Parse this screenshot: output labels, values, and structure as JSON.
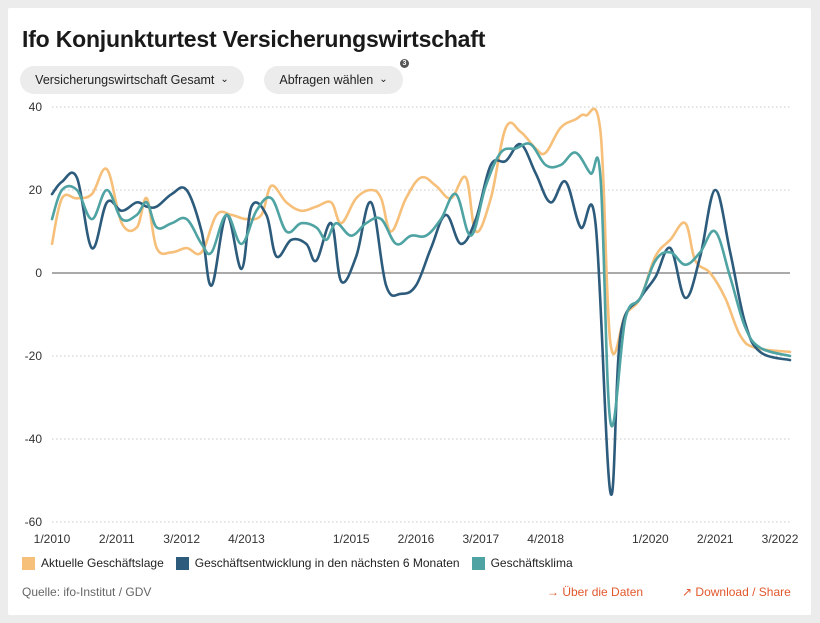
{
  "title": "Ifo Konjunkturtest Versicherungswirtschaft",
  "controls": {
    "sector_select": "Versicherungswirtschaft Gesamt",
    "query_select": "Abfragen wählen",
    "query_badge": "3"
  },
  "footer": {
    "source": "Quelle: ifo-Institut / GDV",
    "about_link": "Über die Daten",
    "download_link": "Download / Share"
  },
  "icons": {
    "about": "arrow-right-icon",
    "download": "arrow-up-right-icon",
    "dropdown": "chevron-down-icon"
  },
  "colors": {
    "accent": "#e2582d"
  },
  "chart_data": {
    "type": "line",
    "x_type": "month",
    "x_start": "1/2010",
    "x_end": "5/2022",
    "ylim": [
      -60,
      40
    ],
    "yticks": [
      40,
      20,
      0,
      -20,
      -40,
      -60
    ],
    "xticks": [
      "1/2010",
      "2/2011",
      "3/2012",
      "4/2013",
      "1/2015",
      "2/2016",
      "3/2017",
      "4/2018",
      "1/2020",
      "2/2021",
      "3/2022"
    ],
    "grid": true,
    "legend_position": "bottom",
    "series": [
      {
        "name": "Aktuelle Geschäftslage",
        "color": "#f6bf7a",
        "points": [
          [
            "1/2010",
            7
          ],
          [
            "3/2010",
            18
          ],
          [
            "6/2010",
            18
          ],
          [
            "9/2010",
            19
          ],
          [
            "12/2010",
            25
          ],
          [
            "3/2011",
            12
          ],
          [
            "6/2011",
            11
          ],
          [
            "8/2011",
            18
          ],
          [
            "10/2011",
            6
          ],
          [
            "1/2012",
            5
          ],
          [
            "4/2012",
            6
          ],
          [
            "7/2012",
            5
          ],
          [
            "10/2012",
            14
          ],
          [
            "1/2013",
            14
          ],
          [
            "4/2013",
            13
          ],
          [
            "7/2013",
            14
          ],
          [
            "9/2013",
            21
          ],
          [
            "12/2013",
            17
          ],
          [
            "3/2014",
            15
          ],
          [
            "6/2014",
            16
          ],
          [
            "9/2014",
            17
          ],
          [
            "11/2014",
            12
          ],
          [
            "2/2015",
            18
          ],
          [
            "5/2015",
            20
          ],
          [
            "7/2015",
            18
          ],
          [
            "9/2015",
            10
          ],
          [
            "12/2015",
            18
          ],
          [
            "3/2016",
            23
          ],
          [
            "6/2016",
            21
          ],
          [
            "9/2016",
            18
          ],
          [
            "12/2016",
            23
          ],
          [
            "2/2017",
            10
          ],
          [
            "5/2017",
            18
          ],
          [
            "8/2017",
            35
          ],
          [
            "11/2017",
            34
          ],
          [
            "2/2018",
            30
          ],
          [
            "4/2018",
            29
          ],
          [
            "7/2018",
            35
          ],
          [
            "10/2018",
            37
          ],
          [
            "12/2018",
            38
          ],
          [
            "3/2019",
            34
          ],
          [
            "5/2019",
            -17
          ],
          [
            "8/2019",
            -10
          ],
          [
            "11/2019",
            -6
          ],
          [
            "2/2020",
            4
          ],
          [
            "5/2020",
            8
          ],
          [
            "8/2020",
            12
          ],
          [
            "10/2020",
            3
          ],
          [
            "1/2021",
            0
          ],
          [
            "4/2021",
            -6
          ],
          [
            "7/2021",
            -15
          ],
          [
            "10/2021",
            -18
          ],
          [
            "5/2022",
            -19
          ]
        ]
      },
      {
        "name": "Geschäftsentwicklung in den nächsten 6 Monaten",
        "color": "#2d5b7c",
        "points": [
          [
            "1/2010",
            19
          ],
          [
            "3/2010",
            22
          ],
          [
            "6/2010",
            23
          ],
          [
            "9/2010",
            6
          ],
          [
            "12/2010",
            17
          ],
          [
            "3/2011",
            15
          ],
          [
            "6/2011",
            17
          ],
          [
            "8/2011",
            16
          ],
          [
            "10/2011",
            16
          ],
          [
            "1/2012",
            19
          ],
          [
            "4/2012",
            20
          ],
          [
            "7/2012",
            10
          ],
          [
            "9/2012",
            -3
          ],
          [
            "12/2012",
            14
          ],
          [
            "3/2013",
            1
          ],
          [
            "5/2013",
            16
          ],
          [
            "8/2013",
            14
          ],
          [
            "10/2013",
            4
          ],
          [
            "1/2014",
            8
          ],
          [
            "4/2014",
            7
          ],
          [
            "6/2014",
            3
          ],
          [
            "9/2014",
            12
          ],
          [
            "11/2014",
            -2
          ],
          [
            "2/2015",
            4
          ],
          [
            "5/2015",
            17
          ],
          [
            "8/2015",
            -3
          ],
          [
            "11/2015",
            -5
          ],
          [
            "2/2016",
            -3
          ],
          [
            "5/2016",
            6
          ],
          [
            "8/2016",
            14
          ],
          [
            "11/2016",
            7
          ],
          [
            "2/2017",
            13
          ],
          [
            "5/2017",
            26
          ],
          [
            "8/2017",
            27
          ],
          [
            "11/2017",
            31
          ],
          [
            "2/2018",
            24
          ],
          [
            "5/2018",
            17
          ],
          [
            "8/2018",
            22
          ],
          [
            "11/2018",
            11
          ],
          [
            "2/2019",
            12
          ],
          [
            "5/2019",
            -53
          ],
          [
            "7/2019",
            -15
          ],
          [
            "11/2019",
            -6
          ],
          [
            "2/2020",
            -1
          ],
          [
            "5/2020",
            6
          ],
          [
            "8/2020",
            -6
          ],
          [
            "11/2020",
            4
          ],
          [
            "2/2021",
            20
          ],
          [
            "5/2021",
            5
          ],
          [
            "8/2021",
            -12
          ],
          [
            "11/2021",
            -19
          ],
          [
            "5/2022",
            -21
          ]
        ]
      },
      {
        "name": "Geschäftsklima",
        "color": "#4fa3a3",
        "points": [
          [
            "1/2010",
            13
          ],
          [
            "3/2010",
            20
          ],
          [
            "6/2010",
            20
          ],
          [
            "9/2010",
            13
          ],
          [
            "12/2010",
            20
          ],
          [
            "3/2011",
            13
          ],
          [
            "6/2011",
            14
          ],
          [
            "8/2011",
            17
          ],
          [
            "10/2011",
            11
          ],
          [
            "1/2012",
            12
          ],
          [
            "4/2012",
            13
          ],
          [
            "7/2012",
            7
          ],
          [
            "9/2012",
            5
          ],
          [
            "12/2012",
            14
          ],
          [
            "3/2013",
            7
          ],
          [
            "6/2013",
            15
          ],
          [
            "9/2013",
            18
          ],
          [
            "12/2013",
            10
          ],
          [
            "3/2014",
            12
          ],
          [
            "6/2014",
            11
          ],
          [
            "8/2014",
            8
          ],
          [
            "10/2014",
            12
          ],
          [
            "1/2015",
            9
          ],
          [
            "4/2015",
            12
          ],
          [
            "7/2015",
            13
          ],
          [
            "10/2015",
            7
          ],
          [
            "1/2016",
            9
          ],
          [
            "4/2016",
            9
          ],
          [
            "7/2016",
            13
          ],
          [
            "10/2016",
            19
          ],
          [
            "1/2017",
            9
          ],
          [
            "4/2017",
            21
          ],
          [
            "7/2017",
            29
          ],
          [
            "10/2017",
            30
          ],
          [
            "1/2018",
            31
          ],
          [
            "4/2018",
            26
          ],
          [
            "7/2018",
            26
          ],
          [
            "10/2018",
            29
          ],
          [
            "1/2019",
            24
          ],
          [
            "3/2019",
            23
          ],
          [
            "5/2019",
            -36
          ],
          [
            "8/2019",
            -11
          ],
          [
            "11/2019",
            -6
          ],
          [
            "2/2020",
            3
          ],
          [
            "5/2020",
            5
          ],
          [
            "8/2020",
            2
          ],
          [
            "11/2020",
            5
          ],
          [
            "2/2021",
            10
          ],
          [
            "5/2021",
            -1
          ],
          [
            "8/2021",
            -13
          ],
          [
            "11/2021",
            -18
          ],
          [
            "5/2022",
            -20
          ]
        ]
      }
    ]
  }
}
